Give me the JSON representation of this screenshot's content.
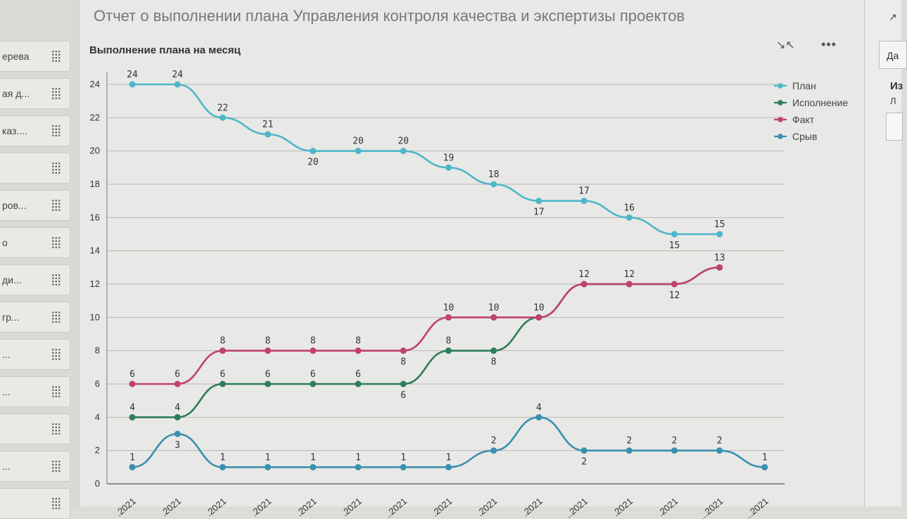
{
  "left_panel": {
    "items": [
      {
        "label": "ерева"
      },
      {
        "label": "ая д..."
      },
      {
        "label": "каз...."
      },
      {
        "label": ""
      },
      {
        "label": "ров..."
      },
      {
        "label": "о"
      },
      {
        "label": "ди..."
      },
      {
        "label": "гр..."
      },
      {
        "label": "..."
      },
      {
        "label": "..."
      },
      {
        "label": ""
      },
      {
        "label": "..."
      },
      {
        "label": ""
      }
    ]
  },
  "report": {
    "title": "Отчет о выполнении плана Управления контроля качества и экспертизы проектов"
  },
  "right_panel": {
    "tab_label": "Да",
    "text1": "Из",
    "text2": "Л"
  },
  "icons": {
    "expand": "collapse-arrows-icon",
    "more": "more-dots-icon",
    "grip": "drag-grip-icon",
    "chart": "line-chart-icon"
  },
  "chart_data": {
    "type": "line",
    "title": "Выполнение плана на месяц",
    "xlabel": "",
    "ylabel": "",
    "ylim": [
      0,
      24
    ],
    "yticks": [
      0,
      2,
      4,
      6,
      8,
      10,
      12,
      14,
      16,
      18,
      20,
      22,
      24
    ],
    "grid": true,
    "legend_position": "top-right",
    "categories": [
      ".2021",
      ".2021",
      ".2021",
      ".2021",
      ".2021",
      ".2021",
      "..2021",
      ".2021",
      ".2021",
      ".2021",
      "..2021",
      ".2021",
      ".2021",
      "...2021",
      "...2021"
    ],
    "series": [
      {
        "name": "План",
        "color": "#4fb6c9",
        "values": [
          24,
          24,
          22,
          21,
          20,
          20,
          20,
          19,
          18,
          17,
          17,
          16,
          15,
          15,
          null
        ]
      },
      {
        "name": "Исполнение",
        "color": "#2e7d5b",
        "values": [
          4,
          4,
          6,
          6,
          6,
          6,
          6,
          8,
          8,
          10,
          12,
          12,
          12,
          13,
          null
        ]
      },
      {
        "name": "Факт",
        "color": "#c0426a",
        "values": [
          6,
          6,
          8,
          8,
          8,
          8,
          8,
          10,
          10,
          10,
          12,
          12,
          12,
          13,
          null
        ]
      },
      {
        "name": "Срыв",
        "color": "#3a8fb0",
        "values": [
          1,
          3,
          1,
          1,
          1,
          1,
          1,
          1,
          2,
          4,
          2,
          2,
          2,
          2,
          1
        ]
      }
    ],
    "data_labels": {
      "План": [
        "24",
        "24",
        "22",
        "21",
        "20",
        "20",
        "20",
        "19",
        "18",
        "17",
        "17",
        "16",
        "15",
        "15",
        ""
      ],
      "Исполнение": [
        "4",
        "4",
        "6",
        "6",
        "6",
        "6",
        "6",
        "8",
        "8",
        "",
        "",
        "",
        "12",
        "",
        ""
      ],
      "Факт": [
        "6",
        "6",
        "8",
        "8",
        "8",
        "8",
        "8",
        "10",
        "10",
        "10",
        "12",
        "12",
        "",
        "13",
        ""
      ],
      "Срыв": [
        "1",
        "3",
        "1",
        "1",
        "1",
        "1",
        "1",
        "1",
        "2",
        "4",
        "2",
        "2",
        "2",
        "2",
        "1"
      ]
    }
  }
}
